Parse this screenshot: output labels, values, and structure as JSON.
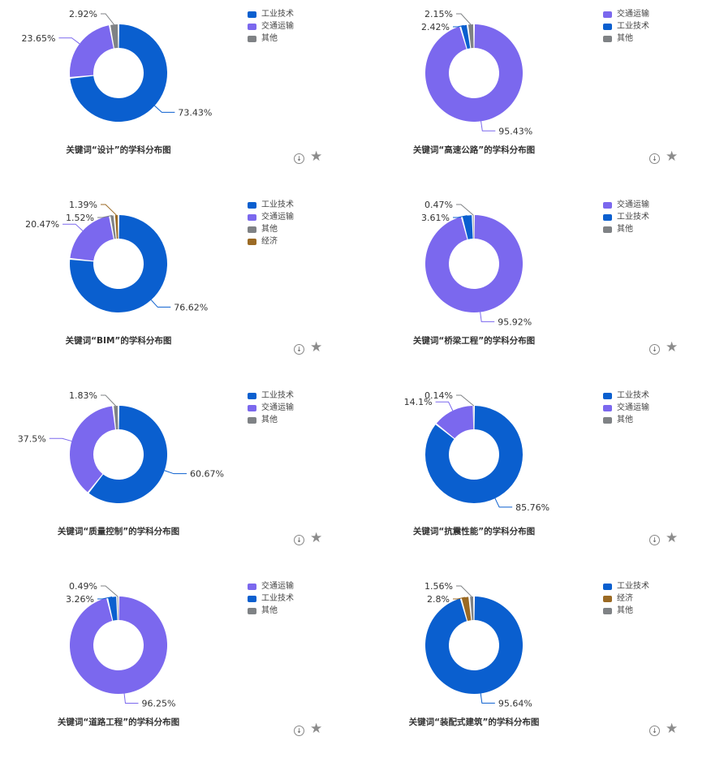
{
  "colors": {
    "工业技术": "#0a5fcf",
    "交通运输": "#7b68ee",
    "其他": "#7f8285",
    "经济": "#9b6a24"
  },
  "icons": {
    "download": "download-icon",
    "star": "star-icon"
  },
  "download_glyph": "↓",
  "star_glyph": "★",
  "chart_data": [
    {
      "type": "pie",
      "title": "关键词“设计”的学科分布图",
      "labels": [
        "工业技术",
        "交通运输",
        "其他"
      ],
      "values": [
        73.43,
        23.65,
        2.92
      ],
      "value_labels": [
        "73.43%",
        "23.65%",
        "2.92%"
      ],
      "legend": "right"
    },
    {
      "type": "pie",
      "title": "关键词“高速公路”的学科分布图",
      "labels": [
        "交通运输",
        "工业技术",
        "其他"
      ],
      "values": [
        95.43,
        2.42,
        2.15
      ],
      "value_labels": [
        "95.43%",
        "2.42%",
        "2.15%"
      ],
      "legend": "right"
    },
    {
      "type": "pie",
      "title": "关键词“BIM”的学科分布图",
      "labels": [
        "工业技术",
        "交通运输",
        "其他",
        "经济"
      ],
      "values": [
        76.62,
        20.47,
        1.52,
        1.39
      ],
      "value_labels": [
        "76.62%",
        "20.47%",
        "1.52%",
        "1.39%"
      ],
      "legend": "right"
    },
    {
      "type": "pie",
      "title": "关键词“桥梁工程”的学科分布图",
      "labels": [
        "交通运输",
        "工业技术",
        "其他"
      ],
      "values": [
        95.92,
        3.61,
        0.47
      ],
      "value_labels": [
        "95.92%",
        "3.61%",
        "0.47%"
      ],
      "legend": "right"
    },
    {
      "type": "pie",
      "title": "关键词“质量控制”的学科分布图",
      "labels": [
        "工业技术",
        "交通运输",
        "其他"
      ],
      "values": [
        60.67,
        37.5,
        1.83
      ],
      "value_labels": [
        "60.67%",
        "37.5%",
        "1.83%"
      ],
      "legend": "right"
    },
    {
      "type": "pie",
      "title": "关键词“抗震性能”的学科分布图",
      "labels": [
        "工业技术",
        "交通运输",
        "其他"
      ],
      "values": [
        85.76,
        14.1,
        0.14
      ],
      "value_labels": [
        "85.76%",
        "14.1%",
        "0.14%"
      ],
      "legend": "right"
    },
    {
      "type": "pie",
      "title": "关键词“道路工程”的学科分布图",
      "labels": [
        "交通运输",
        "工业技术",
        "其他"
      ],
      "values": [
        96.25,
        3.26,
        0.49
      ],
      "value_labels": [
        "96.25%",
        "3.26%",
        "0.49%"
      ],
      "legend": "right"
    },
    {
      "type": "pie",
      "title": "关键词“装配式建筑”的学科分布图",
      "labels": [
        "工业技术",
        "经济",
        "其他"
      ],
      "values": [
        95.64,
        2.8,
        1.56
      ],
      "value_labels": [
        "95.64%",
        "2.8%",
        "1.56%"
      ],
      "legend": "right"
    }
  ]
}
